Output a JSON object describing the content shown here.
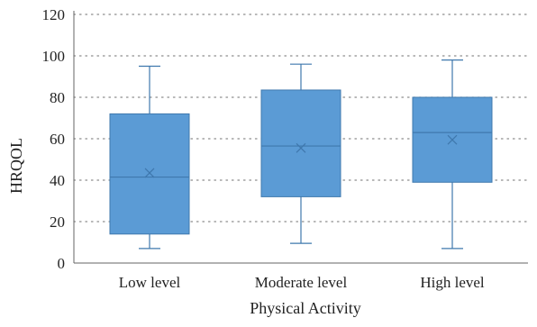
{
  "chart_data": {
    "type": "box",
    "title": "",
    "xlabel": "Physical Activity",
    "ylabel": "HRQOL",
    "ylim": [
      0,
      120
    ],
    "yticks": [
      0,
      20,
      40,
      60,
      80,
      100,
      120
    ],
    "grid": true,
    "legend": "none",
    "colors": {
      "box_fill": "#5b9bd5",
      "box_stroke": "#3f78ad",
      "grid": "#8c8c8c",
      "axis": "#666666"
    },
    "categories": [
      "Low level",
      "Moderate level",
      "High level"
    ],
    "boxes": [
      {
        "category": "Low level",
        "min": 7,
        "q1": 14,
        "median": 41.5,
        "mean": 43.5,
        "q3": 72,
        "max": 95
      },
      {
        "category": "Moderate level",
        "min": 9.5,
        "q1": 32,
        "median": 56.5,
        "mean": 55.5,
        "q3": 83.5,
        "max": 96
      },
      {
        "category": "High level",
        "min": 7,
        "q1": 39,
        "median": 63,
        "mean": 59.5,
        "q3": 80,
        "max": 98
      }
    ]
  }
}
